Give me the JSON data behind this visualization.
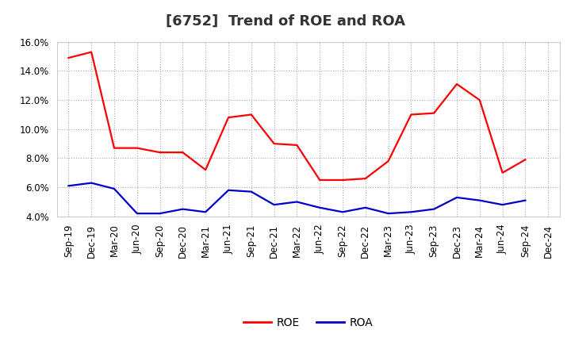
{
  "title": "[6752]  Trend of ROE and ROA",
  "x_labels": [
    "Sep-19",
    "Dec-19",
    "Mar-20",
    "Jun-20",
    "Sep-20",
    "Dec-20",
    "Mar-21",
    "Jun-21",
    "Sep-21",
    "Dec-21",
    "Mar-22",
    "Jun-22",
    "Sep-22",
    "Dec-22",
    "Mar-23",
    "Jun-23",
    "Sep-23",
    "Dec-23",
    "Mar-24",
    "Jun-24",
    "Sep-24",
    "Dec-24"
  ],
  "roe": [
    14.9,
    15.3,
    8.7,
    8.7,
    8.4,
    8.4,
    7.2,
    10.8,
    11.0,
    9.0,
    8.9,
    6.5,
    6.5,
    6.6,
    7.8,
    11.0,
    11.1,
    13.1,
    12.0,
    7.0,
    7.9,
    null
  ],
  "roa": [
    6.1,
    6.3,
    5.9,
    4.2,
    4.2,
    4.5,
    4.3,
    5.8,
    5.7,
    4.8,
    5.0,
    4.6,
    4.3,
    4.6,
    4.2,
    4.3,
    4.5,
    5.3,
    5.1,
    4.8,
    5.1,
    null
  ],
  "roe_color": "#ff0000",
  "roa_color": "#0000cc",
  "ylim": [
    4.0,
    16.0
  ],
  "yticks": [
    4.0,
    6.0,
    8.0,
    10.0,
    12.0,
    14.0,
    16.0
  ],
  "background_color": "#ffffff",
  "grid_color": "#aaaaaa",
  "title_fontsize": 13,
  "axis_fontsize": 8.5,
  "legend_fontsize": 10
}
